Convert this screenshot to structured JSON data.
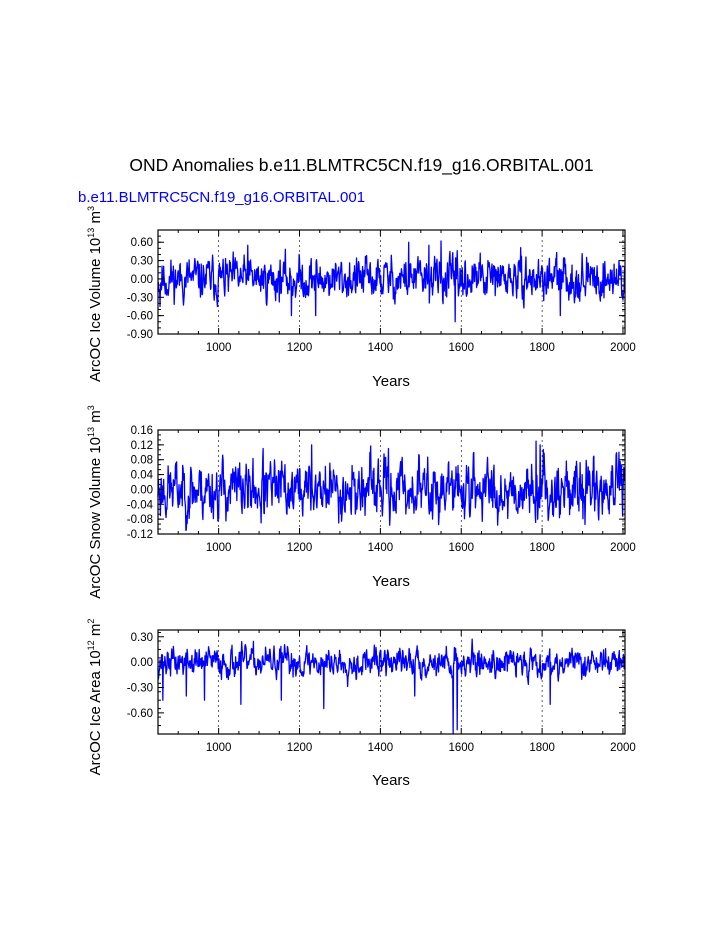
{
  "title": "OND Anomalies b.e11.BLMTRC5CN.f19_g16.ORBITAL.001",
  "case_label": "b.e11.BLMTRC5CN.f19_g16.ORBITAL.001",
  "colors": {
    "series": "#0000ff",
    "axis": "#000000",
    "grid": "#000000"
  },
  "chart_data": [
    {
      "type": "line",
      "name": "ice-volume",
      "ylabel": "ArcOC Ice Volume 10^13 m^3",
      "ylabel_parts": {
        "pre": "ArcOC Ice Volume 10",
        "exp": "13",
        "mid": " m",
        "exp2": "3"
      },
      "xlabel": "Years",
      "xlim": [
        850,
        2005
      ],
      "ylim": [
        -0.9,
        0.8
      ],
      "xticks": [
        1000,
        1200,
        1400,
        1600,
        1800,
        2000
      ],
      "xtick_labels": [
        "1000",
        "1200",
        "1400",
        "1600",
        "1800",
        "2000"
      ],
      "yticks": [
        0.6,
        0.3,
        0.0,
        -0.3,
        -0.6,
        -0.9
      ],
      "ytick_labels": [
        "0.60",
        "0.30",
        "0.00",
        "-0.30",
        "-0.60",
        "-0.90"
      ],
      "amplitude": 0.18,
      "spikes": [
        [
          855,
          -0.45
        ],
        [
          1072,
          0.55
        ],
        [
          1180,
          -0.6
        ],
        [
          1240,
          -0.6
        ],
        [
          1470,
          0.6
        ],
        [
          1520,
          0.55
        ],
        [
          1550,
          0.62
        ],
        [
          1585,
          -0.7
        ],
        [
          1845,
          -0.6
        ],
        [
          1990,
          0.3
        ]
      ],
      "seed": 11
    },
    {
      "type": "line",
      "name": "snow-volume",
      "ylabel": "ArcOC Snow Volume 10^13 m^3",
      "ylabel_parts": {
        "pre": "ArcOC Snow Volume 10",
        "exp": "13",
        "mid": " m",
        "exp2": "3"
      },
      "xlabel": "Years",
      "xlim": [
        850,
        2005
      ],
      "ylim": [
        -0.12,
        0.16
      ],
      "xticks": [
        1000,
        1200,
        1400,
        1600,
        1800,
        2000
      ],
      "xtick_labels": [
        "1000",
        "1200",
        "1400",
        "1600",
        "1800",
        "2000"
      ],
      "yticks": [
        0.16,
        0.12,
        0.08,
        0.04,
        0.0,
        -0.04,
        -0.08,
        -0.12
      ],
      "ytick_labels": [
        "0.16",
        "0.12",
        "0.08",
        "0.04",
        "0.00",
        "-0.04",
        "-0.08",
        "-0.12"
      ],
      "amplitude": 0.04,
      "spikes": [
        [
          1105,
          -0.09
        ],
        [
          1110,
          0.11
        ],
        [
          1230,
          0.12
        ],
        [
          1420,
          0.11
        ],
        [
          1785,
          0.13
        ],
        [
          1795,
          0.12
        ],
        [
          1990,
          0.1
        ]
      ],
      "seed": 23
    },
    {
      "type": "line",
      "name": "ice-area",
      "ylabel": "ArcOC Ice Area 10^12 m^2",
      "ylabel_parts": {
        "pre": "ArcOC Ice Area 10",
        "exp": "12",
        "mid": " m",
        "exp2": "2"
      },
      "xlabel": "Years",
      "xlim": [
        850,
        2005
      ],
      "ylim": [
        -0.85,
        0.38
      ],
      "xticks": [
        1000,
        1200,
        1400,
        1600,
        1800,
        2000
      ],
      "xtick_labels": [
        "1000",
        "1200",
        "1400",
        "1600",
        "1800",
        "2000"
      ],
      "yticks": [
        0.3,
        0.0,
        -0.3,
        -0.6
      ],
      "ytick_labels": [
        "0.30",
        "0.00",
        "-0.30",
        "-0.60"
      ],
      "amplitude": 0.09,
      "spikes": [
        [
          862,
          -0.45
        ],
        [
          920,
          -0.4
        ],
        [
          965,
          -0.45
        ],
        [
          1055,
          -0.5
        ],
        [
          1155,
          -0.45
        ],
        [
          1260,
          -0.55
        ],
        [
          1485,
          -0.4
        ],
        [
          1580,
          -0.85
        ],
        [
          1590,
          -0.8
        ],
        [
          1820,
          -0.5
        ]
      ],
      "seed": 37
    }
  ]
}
